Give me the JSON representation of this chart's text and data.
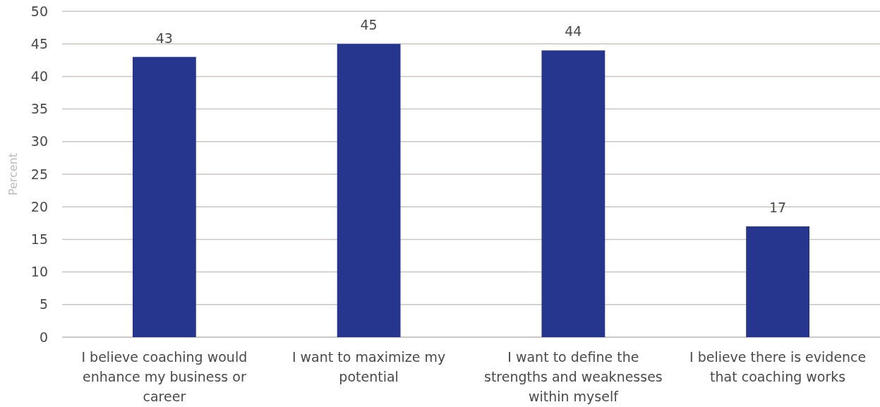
{
  "chart_data": {
    "type": "bar",
    "ylabel": "Percent",
    "categories": [
      "I believe coaching would enhance my business or career",
      "I want to maximize my potential",
      "I want to define the strengths and weaknesses within myself",
      "I believe there is evidence that coaching works"
    ],
    "values": [
      43,
      45,
      44,
      17
    ],
    "color": "#26368e",
    "ylim": [
      0,
      50
    ],
    "yticks": [
      0,
      5,
      10,
      15,
      20,
      25,
      30,
      35,
      40,
      45,
      50
    ],
    "grid": "y",
    "data_labels": true
  }
}
